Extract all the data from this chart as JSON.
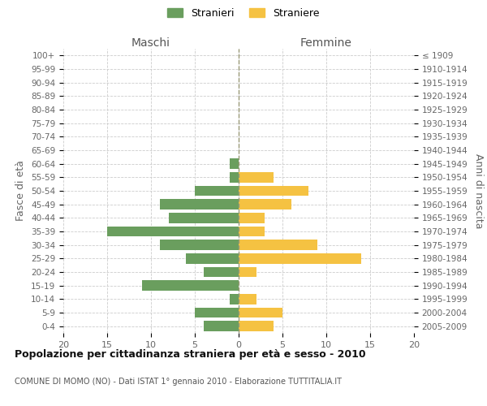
{
  "age_groups": [
    "100+",
    "95-99",
    "90-94",
    "85-89",
    "80-84",
    "75-79",
    "70-74",
    "65-69",
    "60-64",
    "55-59",
    "50-54",
    "45-49",
    "40-44",
    "35-39",
    "30-34",
    "25-29",
    "20-24",
    "15-19",
    "10-14",
    "5-9",
    "0-4"
  ],
  "birth_years": [
    "≤ 1909",
    "1910-1914",
    "1915-1919",
    "1920-1924",
    "1925-1929",
    "1930-1934",
    "1935-1939",
    "1940-1944",
    "1945-1949",
    "1950-1954",
    "1955-1959",
    "1960-1964",
    "1965-1969",
    "1970-1974",
    "1975-1979",
    "1980-1984",
    "1985-1989",
    "1990-1994",
    "1995-1999",
    "2000-2004",
    "2005-2009"
  ],
  "males": [
    0,
    0,
    0,
    0,
    0,
    0,
    0,
    0,
    1,
    1,
    5,
    9,
    8,
    15,
    9,
    6,
    4,
    11,
    1,
    5,
    4
  ],
  "females": [
    0,
    0,
    0,
    0,
    0,
    0,
    0,
    0,
    0,
    4,
    8,
    6,
    3,
    3,
    9,
    14,
    2,
    0,
    2,
    5,
    4
  ],
  "male_color": "#6a9e5e",
  "female_color": "#f5c242",
  "male_label": "Stranieri",
  "female_label": "Straniere",
  "title": "Popolazione per cittadinanza straniera per età e sesso - 2010",
  "subtitle": "COMUNE DI MOMO (NO) - Dati ISTAT 1° gennaio 2010 - Elaborazione TUTTITALIA.IT",
  "xlabel_left": "Maschi",
  "xlabel_right": "Femmine",
  "ylabel_left": "Fasce di età",
  "ylabel_right": "Anni di nascita",
  "xlim": 20,
  "background_color": "#ffffff",
  "grid_color": "#cccccc",
  "bar_height": 0.75
}
